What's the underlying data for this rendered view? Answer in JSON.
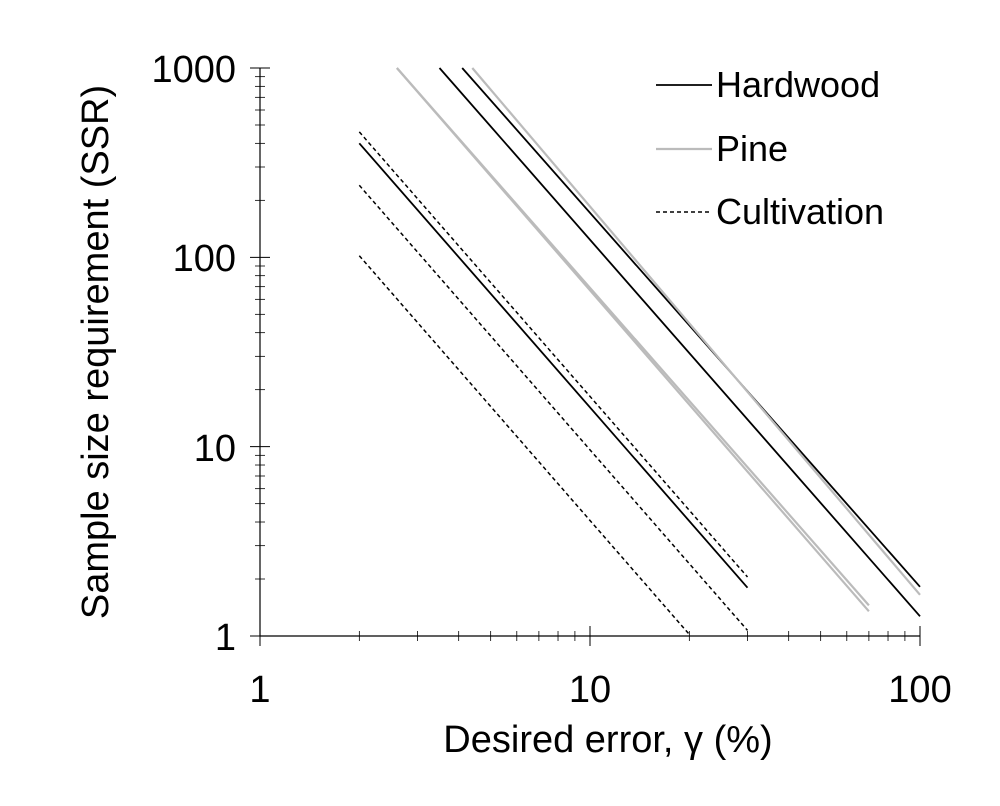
{
  "chart_data": {
    "type": "line",
    "title": "",
    "xlabel": "Desired error, γ (%)",
    "ylabel": "Sample size requirement (SSR)",
    "x_scale": "log",
    "y_scale": "log",
    "xlim": [
      1,
      100
    ],
    "ylim": [
      1,
      1000
    ],
    "x_ticks": [
      "1",
      "10",
      "100"
    ],
    "y_ticks": [
      "1",
      "10",
      "100",
      "1000"
    ],
    "grid": false,
    "legend_position": "top-right",
    "legend": [
      {
        "name": "Hardwood",
        "color": "#000000",
        "style": "solid"
      },
      {
        "name": "Pine",
        "color": "#bbbbbb",
        "style": "solid"
      },
      {
        "name": "Cultivation",
        "color": "#000000",
        "style": "dashed"
      }
    ],
    "series": [
      {
        "group": "Hardwood",
        "x": [
          4.1,
          100
        ],
        "y": [
          1000,
          1.82
        ]
      },
      {
        "group": "Hardwood",
        "x": [
          3.5,
          100
        ],
        "y": [
          1000,
          1.27
        ]
      },
      {
        "group": "Hardwood",
        "x": [
          2,
          30
        ],
        "y": [
          400,
          1.8
        ]
      },
      {
        "group": "Pine",
        "x": [
          4.4,
          100
        ],
        "y": [
          1000,
          1.65
        ]
      },
      {
        "group": "Pine",
        "x": [
          2.6,
          70
        ],
        "y": [
          1000,
          1.45
        ]
      },
      {
        "group": "Pine",
        "x": [
          2.6,
          70
        ],
        "y": [
          1000,
          1.35
        ]
      },
      {
        "group": "Cultivation",
        "x": [
          2,
          30
        ],
        "y": [
          460,
          2.05
        ]
      },
      {
        "group": "Cultivation",
        "x": [
          2,
          30
        ],
        "y": [
          240,
          1.07
        ]
      },
      {
        "group": "Cultivation",
        "x": [
          2,
          20
        ],
        "y": [
          102,
          1.02
        ]
      }
    ]
  }
}
